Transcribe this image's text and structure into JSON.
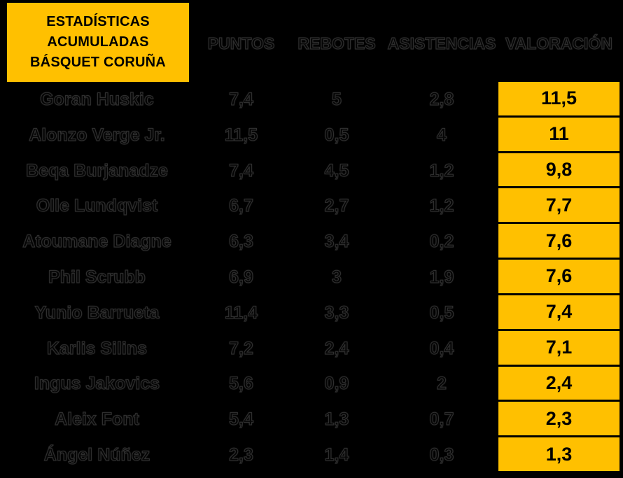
{
  "title": {
    "lines": [
      "ESTADÍSTICAS",
      "ACUMULADAS",
      "BÁSQUET CORUÑA"
    ]
  },
  "columns": [
    "PUNTOS",
    "REBOTES",
    "ASISTENCIAS",
    "VALORACIÓN"
  ],
  "players": [
    {
      "name": "Goran Huskic",
      "puntos": "7,4",
      "rebotes": "5",
      "asistencias": "2,8",
      "valoracion": "11,5"
    },
    {
      "name": "Alonzo Verge Jr.",
      "puntos": "11,5",
      "rebotes": "0,5",
      "asistencias": "4",
      "valoracion": "11"
    },
    {
      "name": "Beqa Burjanadze",
      "puntos": "7,4",
      "rebotes": "4,5",
      "asistencias": "1,2",
      "valoracion": "9,8"
    },
    {
      "name": "Olle Lundqvist",
      "puntos": "6,7",
      "rebotes": "2,7",
      "asistencias": "1,2",
      "valoracion": "7,7"
    },
    {
      "name": "Atoumane Diagne",
      "puntos": "6,3",
      "rebotes": "3,4",
      "asistencias": "0,2",
      "valoracion": "7,6"
    },
    {
      "name": "Phil Scrubb",
      "puntos": "6,9",
      "rebotes": "3",
      "asistencias": "1,9",
      "valoracion": "7,6"
    },
    {
      "name": "Yunio Barrueta",
      "puntos": "11,4",
      "rebotes": "3,3",
      "asistencias": "0,5",
      "valoracion": "7,4"
    },
    {
      "name": "Karlis Silins",
      "puntos": "7,2",
      "rebotes": "2,4",
      "asistencias": "0,4",
      "valoracion": "7,1"
    },
    {
      "name": "Ingus Jakovics",
      "puntos": "5,6",
      "rebotes": "0,9",
      "asistencias": "2",
      "valoracion": "2,4"
    },
    {
      "name": "Aleix Font",
      "puntos": "5,4",
      "rebotes": "1,3",
      "asistencias": "0,7",
      "valoracion": "2,3"
    },
    {
      "name": "Ángel Núñez",
      "puntos": "2,3",
      "rebotes": "1,4",
      "asistencias": "0,3",
      "valoracion": "1,3"
    }
  ],
  "colors": {
    "accent_yellow": "#FFC000",
    "background": "#000000",
    "text": "#000000"
  },
  "chart_data": {
    "type": "table",
    "title": "ESTADÍSTICAS ACUMULADAS BÁSQUET CORUÑA",
    "columns": [
      "PUNTOS",
      "REBOTES",
      "ASISTENCIAS",
      "VALORACIÓN"
    ],
    "decimal_separator": ",",
    "sorted_by": "VALORACIÓN descending",
    "rows": [
      {
        "name": "Goran Huskic",
        "values": [
          7.4,
          5,
          2.8,
          11.5
        ]
      },
      {
        "name": "Alonzo Verge Jr.",
        "values": [
          11.5,
          0.5,
          4,
          11
        ]
      },
      {
        "name": "Beqa Burjanadze",
        "values": [
          7.4,
          4.5,
          1.2,
          9.8
        ]
      },
      {
        "name": "Olle Lundqvist",
        "values": [
          6.7,
          2.7,
          1.2,
          7.7
        ]
      },
      {
        "name": "Atoumane Diagne",
        "values": [
          6.3,
          3.4,
          0.2,
          7.6
        ]
      },
      {
        "name": "Phil Scrubb",
        "values": [
          6.9,
          3,
          1.9,
          7.6
        ]
      },
      {
        "name": "Yunio Barrueta",
        "values": [
          11.4,
          3.3,
          0.5,
          7.4
        ]
      },
      {
        "name": "Karlis Silins",
        "values": [
          7.2,
          2.4,
          0.4,
          7.1
        ]
      },
      {
        "name": "Ingus Jakovics",
        "values": [
          5.6,
          0.9,
          2,
          2.4
        ]
      },
      {
        "name": "Aleix Font",
        "values": [
          5.4,
          1.3,
          0.7,
          2.3
        ]
      },
      {
        "name": "Ángel Núñez",
        "values": [
          2.3,
          1.4,
          0.3,
          1.3
        ]
      }
    ]
  }
}
